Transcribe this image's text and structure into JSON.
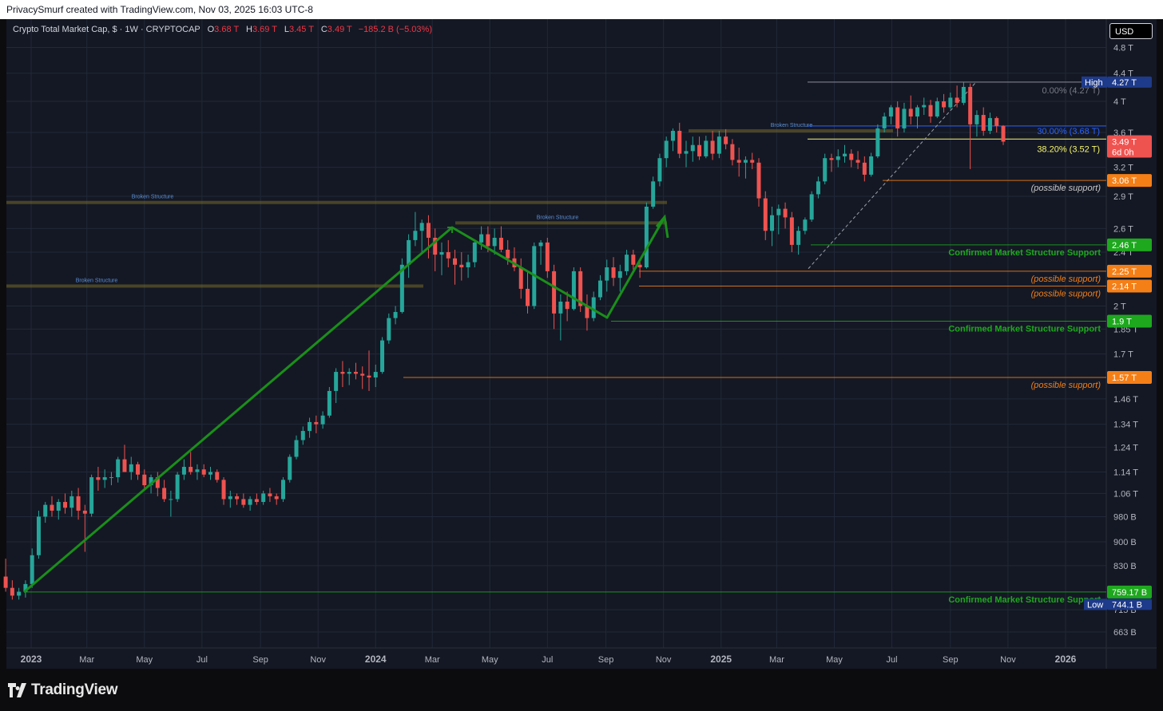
{
  "header": {
    "attribution": "PrivacySmurf created with TradingView.com, Nov 03, 2025 16:03 UTC-8"
  },
  "legend": {
    "symbol": "Crypto Total Market Cap, $ · 1W · CRYPTOCAP",
    "o_label": "O",
    "o_value": "3.68 T",
    "h_label": "H",
    "h_value": "3.69 T",
    "l_label": "L",
    "l_value": "3.45 T",
    "c_label": "C",
    "c_value": "3.49 T",
    "change": "−185.2 B (−5.03%)"
  },
  "currency_button": "USD",
  "brand": {
    "name": "TradingView",
    "icon": "tradingview-logo-icon"
  },
  "colors": {
    "up": "#26a69a",
    "down": "#ef5350",
    "background": "#141824",
    "support_green": "#1ea81e",
    "support_orange": "#f57f17",
    "trend_arrow": "#1a8f1a"
  },
  "chart_data": {
    "type": "candlestick",
    "interval": "1W",
    "y_scale": "log",
    "y_unit": "USD",
    "y_ticks": [
      "4.8 T",
      "4.4 T",
      "4 T",
      "3.6 T",
      "3.2 T",
      "2.9 T",
      "2.6 T",
      "2.4 T",
      "2 T",
      "1.85 T",
      "1.7 T",
      "1.46 T",
      "1.34 T",
      "1.24 T",
      "1.14 T",
      "1.06 T",
      "980 B",
      "900 B",
      "830 B",
      "715 B",
      "663 B"
    ],
    "y_tick_values": [
      4.8,
      4.4,
      4.0,
      3.6,
      3.2,
      2.9,
      2.6,
      2.4,
      2.0,
      1.85,
      1.7,
      1.46,
      1.34,
      1.24,
      1.14,
      1.06,
      0.98,
      0.9,
      0.83,
      0.715,
      0.663
    ],
    "x_ticks": [
      {
        "label": "2023",
        "date": "2023-01-01",
        "bold": true
      },
      {
        "label": "Mar",
        "date": "2023-03-01"
      },
      {
        "label": "May",
        "date": "2023-05-01"
      },
      {
        "label": "Jul",
        "date": "2023-07-01"
      },
      {
        "label": "Sep",
        "date": "2023-09-01"
      },
      {
        "label": "Nov",
        "date": "2023-11-01"
      },
      {
        "label": "2024",
        "date": "2024-01-01",
        "bold": true
      },
      {
        "label": "Mar",
        "date": "2024-03-01"
      },
      {
        "label": "May",
        "date": "2024-05-01"
      },
      {
        "label": "Jul",
        "date": "2024-07-01"
      },
      {
        "label": "Sep",
        "date": "2024-09-01"
      },
      {
        "label": "Nov",
        "date": "2024-11-01"
      },
      {
        "label": "2025",
        "date": "2025-01-01",
        "bold": true
      },
      {
        "label": "Mar",
        "date": "2025-03-01"
      },
      {
        "label": "May",
        "date": "2025-05-01"
      },
      {
        "label": "Jul",
        "date": "2025-07-01"
      },
      {
        "label": "Sep",
        "date": "2025-09-01"
      },
      {
        "label": "Nov",
        "date": "2025-11-01"
      },
      {
        "label": "2026",
        "date": "2026-01-01",
        "bold": true
      }
    ],
    "candles_start_date": "2022-12-05",
    "candles": [
      [
        0.8,
        0.85,
        0.76,
        0.77
      ],
      [
        0.77,
        0.79,
        0.74,
        0.75
      ],
      [
        0.75,
        0.77,
        0.74,
        0.76
      ],
      [
        0.76,
        0.79,
        0.745,
        0.78
      ],
      [
        0.78,
        0.88,
        0.77,
        0.86
      ],
      [
        0.86,
        1.0,
        0.85,
        0.98
      ],
      [
        0.98,
        1.03,
        0.96,
        1.02
      ],
      [
        1.02,
        1.05,
        0.98,
        1.0
      ],
      [
        1.0,
        1.04,
        0.97,
        1.03
      ],
      [
        1.03,
        1.06,
        0.99,
        1.01
      ],
      [
        1.01,
        1.07,
        0.98,
        1.05
      ],
      [
        1.05,
        1.08,
        0.97,
        1.0
      ],
      [
        1.0,
        1.02,
        0.87,
        0.99
      ],
      [
        0.99,
        1.13,
        0.98,
        1.12
      ],
      [
        1.12,
        1.16,
        1.07,
        1.11
      ],
      [
        1.11,
        1.15,
        1.08,
        1.12
      ],
      [
        1.12,
        1.14,
        1.09,
        1.12
      ],
      [
        1.12,
        1.2,
        1.1,
        1.19
      ],
      [
        1.19,
        1.25,
        1.15,
        1.14
      ],
      [
        1.14,
        1.2,
        1.11,
        1.17
      ],
      [
        1.17,
        1.18,
        1.11,
        1.13
      ],
      [
        1.13,
        1.15,
        1.08,
        1.09
      ],
      [
        1.09,
        1.13,
        1.06,
        1.12
      ],
      [
        1.12,
        1.14,
        1.05,
        1.08
      ],
      [
        1.08,
        1.11,
        1.03,
        1.04
      ],
      [
        1.04,
        1.07,
        0.98,
        1.04
      ],
      [
        1.04,
        1.14,
        1.03,
        1.13
      ],
      [
        1.13,
        1.19,
        1.11,
        1.16
      ],
      [
        1.16,
        1.22,
        1.13,
        1.14
      ],
      [
        1.14,
        1.17,
        1.11,
        1.15
      ],
      [
        1.15,
        1.17,
        1.12,
        1.13
      ],
      [
        1.13,
        1.16,
        1.11,
        1.14
      ],
      [
        1.14,
        1.15,
        1.1,
        1.11
      ],
      [
        1.11,
        1.12,
        1.02,
        1.04
      ],
      [
        1.04,
        1.07,
        1.01,
        1.05
      ],
      [
        1.05,
        1.06,
        1.02,
        1.04
      ],
      [
        1.04,
        1.06,
        1.01,
        1.02
      ],
      [
        1.02,
        1.05,
        1.0,
        1.04
      ],
      [
        1.04,
        1.06,
        1.02,
        1.03
      ],
      [
        1.03,
        1.07,
        1.02,
        1.06
      ],
      [
        1.06,
        1.08,
        1.03,
        1.05
      ],
      [
        1.05,
        1.06,
        1.02,
        1.04
      ],
      [
        1.04,
        1.12,
        1.03,
        1.11
      ],
      [
        1.11,
        1.21,
        1.1,
        1.2
      ],
      [
        1.2,
        1.29,
        1.19,
        1.27
      ],
      [
        1.27,
        1.33,
        1.25,
        1.31
      ],
      [
        1.31,
        1.37,
        1.28,
        1.35
      ],
      [
        1.35,
        1.38,
        1.3,
        1.34
      ],
      [
        1.34,
        1.4,
        1.32,
        1.38
      ],
      [
        1.38,
        1.52,
        1.37,
        1.5
      ],
      [
        1.5,
        1.62,
        1.44,
        1.6
      ],
      [
        1.6,
        1.66,
        1.52,
        1.59
      ],
      [
        1.59,
        1.62,
        1.53,
        1.6
      ],
      [
        1.6,
        1.65,
        1.56,
        1.59
      ],
      [
        1.59,
        1.63,
        1.51,
        1.58
      ],
      [
        1.58,
        1.72,
        1.5,
        1.57
      ],
      [
        1.57,
        1.64,
        1.52,
        1.6
      ],
      [
        1.6,
        1.8,
        1.59,
        1.78
      ],
      [
        1.78,
        1.95,
        1.76,
        1.92
      ],
      [
        1.92,
        2.0,
        1.88,
        1.96
      ],
      [
        1.96,
        2.35,
        1.95,
        2.3
      ],
      [
        2.3,
        2.55,
        2.2,
        2.5
      ],
      [
        2.5,
        2.75,
        2.45,
        2.58
      ],
      [
        2.58,
        2.68,
        2.4,
        2.65
      ],
      [
        2.65,
        2.72,
        2.35,
        2.52
      ],
      [
        2.52,
        2.6,
        2.25,
        2.38
      ],
      [
        2.38,
        2.48,
        2.22,
        2.4
      ],
      [
        2.4,
        2.5,
        2.28,
        2.35
      ],
      [
        2.35,
        2.42,
        2.15,
        2.3
      ],
      [
        2.3,
        2.4,
        2.18,
        2.28
      ],
      [
        2.28,
        2.38,
        2.2,
        2.32
      ],
      [
        2.32,
        2.5,
        2.28,
        2.48
      ],
      [
        2.48,
        2.62,
        2.42,
        2.55
      ],
      [
        2.55,
        2.62,
        2.4,
        2.45
      ],
      [
        2.45,
        2.6,
        2.38,
        2.52
      ],
      [
        2.52,
        2.62,
        2.4,
        2.42
      ],
      [
        2.42,
        2.5,
        2.3,
        2.35
      ],
      [
        2.35,
        2.44,
        2.25,
        2.28
      ],
      [
        2.28,
        2.35,
        2.05,
        2.12
      ],
      [
        2.12,
        2.25,
        1.95,
        2.0
      ],
      [
        2.0,
        2.48,
        1.98,
        2.45
      ],
      [
        2.45,
        2.5,
        2.3,
        2.48
      ],
      [
        2.48,
        2.52,
        2.2,
        2.25
      ],
      [
        2.25,
        2.3,
        1.85,
        1.95
      ],
      [
        1.95,
        2.08,
        1.78,
        2.03
      ],
      [
        2.03,
        2.1,
        1.9,
        1.98
      ],
      [
        1.98,
        2.28,
        1.97,
        2.25
      ],
      [
        2.25,
        2.28,
        1.96,
        2.0
      ],
      [
        2.0,
        2.08,
        1.84,
        1.92
      ],
      [
        1.92,
        2.1,
        1.9,
        2.06
      ],
      [
        2.06,
        2.22,
        2.04,
        2.18
      ],
      [
        2.18,
        2.34,
        2.1,
        2.28
      ],
      [
        2.28,
        2.36,
        2.14,
        2.2
      ],
      [
        2.2,
        2.3,
        2.1,
        2.25
      ],
      [
        2.25,
        2.42,
        2.22,
        2.38
      ],
      [
        2.38,
        2.42,
        2.26,
        2.3
      ],
      [
        2.3,
        2.34,
        2.2,
        2.28
      ],
      [
        2.28,
        2.84,
        2.27,
        2.8
      ],
      [
        2.8,
        3.1,
        2.78,
        3.05
      ],
      [
        3.05,
        3.35,
        3.0,
        3.3
      ],
      [
        3.3,
        3.55,
        3.2,
        3.5
      ],
      [
        3.5,
        3.65,
        3.38,
        3.62
      ],
      [
        3.62,
        3.72,
        3.3,
        3.35
      ],
      [
        3.35,
        3.5,
        3.2,
        3.38
      ],
      [
        3.38,
        3.55,
        3.26,
        3.45
      ],
      [
        3.45,
        3.55,
        3.28,
        3.32
      ],
      [
        3.32,
        3.56,
        3.3,
        3.5
      ],
      [
        3.5,
        3.62,
        3.28,
        3.35
      ],
      [
        3.35,
        3.62,
        3.3,
        3.55
      ],
      [
        3.55,
        3.64,
        3.4,
        3.46
      ],
      [
        3.46,
        3.52,
        3.22,
        3.28
      ],
      [
        3.28,
        3.42,
        3.1,
        3.25
      ],
      [
        3.25,
        3.32,
        3.08,
        3.28
      ],
      [
        3.28,
        3.36,
        3.18,
        3.25
      ],
      [
        3.25,
        3.3,
        2.8,
        2.88
      ],
      [
        2.88,
        2.95,
        2.5,
        2.58
      ],
      [
        2.58,
        2.8,
        2.45,
        2.72
      ],
      [
        2.72,
        2.82,
        2.55,
        2.78
      ],
      [
        2.78,
        2.84,
        2.6,
        2.7
      ],
      [
        2.7,
        2.75,
        2.4,
        2.46
      ],
      [
        2.46,
        2.62,
        2.38,
        2.58
      ],
      [
        2.58,
        2.7,
        2.55,
        2.68
      ],
      [
        2.68,
        2.95,
        2.66,
        2.92
      ],
      [
        2.92,
        3.1,
        2.88,
        3.05
      ],
      [
        3.05,
        3.35,
        3.02,
        3.3
      ],
      [
        3.3,
        3.35,
        3.15,
        3.28
      ],
      [
        3.28,
        3.4,
        3.2,
        3.32
      ],
      [
        3.32,
        3.45,
        3.25,
        3.35
      ],
      [
        3.35,
        3.4,
        3.2,
        3.28
      ],
      [
        3.28,
        3.38,
        3.18,
        3.25
      ],
      [
        3.25,
        3.32,
        3.05,
        3.12
      ],
      [
        3.12,
        3.36,
        3.1,
        3.32
      ],
      [
        3.32,
        3.7,
        3.3,
        3.65
      ],
      [
        3.65,
        3.85,
        3.6,
        3.8
      ],
      [
        3.8,
        3.95,
        3.7,
        3.92
      ],
      [
        3.92,
        4.0,
        3.55,
        3.65
      ],
      [
        3.65,
        3.98,
        3.6,
        3.9
      ],
      [
        3.9,
        4.08,
        3.7,
        3.8
      ],
      [
        3.8,
        3.95,
        3.65,
        3.92
      ],
      [
        3.92,
        4.05,
        3.82,
        3.95
      ],
      [
        3.95,
        4.02,
        3.72,
        3.8
      ],
      [
        3.8,
        4.05,
        3.78,
        4.0
      ],
      [
        4.0,
        4.1,
        3.85,
        3.92
      ],
      [
        3.92,
        4.12,
        3.9,
        4.05
      ],
      [
        4.05,
        4.22,
        3.92,
        3.98
      ],
      [
        3.98,
        4.27,
        3.95,
        4.2
      ],
      [
        4.2,
        4.25,
        3.18,
        3.7
      ],
      [
        3.7,
        3.88,
        3.55,
        3.82
      ],
      [
        3.82,
        3.92,
        3.56,
        3.62
      ],
      [
        3.62,
        3.85,
        3.58,
        3.78
      ],
      [
        3.78,
        3.8,
        3.6,
        3.68
      ],
      [
        3.68,
        3.69,
        3.45,
        3.49
      ]
    ],
    "series": [
      {
        "name": "Crypto Total Market Cap"
      }
    ],
    "horizontal_levels": [
      {
        "price": 3.06,
        "label": "3.06 T",
        "note": "(possible support)",
        "color": "#f57f17"
      },
      {
        "price": 2.46,
        "label": "2.46 T",
        "note": "Confirmed Market Structure Support",
        "color": "#1ea81e"
      },
      {
        "price": 2.25,
        "label": "2.25 T",
        "note": "(possible support)",
        "color": "#f57f17"
      },
      {
        "price": 2.14,
        "label": "2.14 T",
        "note": "(possible support)",
        "color": "#f57f17"
      },
      {
        "price": 1.9,
        "label": "1.9 T",
        "note": "Confirmed Market Structure Support",
        "color": "#1ea81e"
      },
      {
        "price": 1.57,
        "label": "1.57 T",
        "note": "(possible support)",
        "color": "#f57f17"
      },
      {
        "price": 0.75917,
        "label": "759.17 B",
        "note": "Confirmed Market Structure Support",
        "color": "#1ea81e"
      }
    ],
    "broken_structure": [
      {
        "label": "Broken Structure",
        "price": 2.84
      },
      {
        "label": "Broken Structure",
        "price": 2.65
      },
      {
        "label": "Broken Structure",
        "price": 2.14
      },
      {
        "label": "Broken Structure",
        "price": 3.62
      }
    ],
    "fib": [
      {
        "label": "0.00% (4.27 T)",
        "price": 4.27,
        "color": "#787b86"
      },
      {
        "label": "30.00% (3.68 T)",
        "price": 3.68,
        "color": "#2962ff"
      },
      {
        "label": "38.20% (3.52 T)",
        "price": 3.52,
        "color": "#f7f76a"
      }
    ],
    "markers": {
      "high": {
        "tag": "High",
        "label": "4.27 T"
      },
      "low": {
        "tag": "Low",
        "label": "744.1 B"
      },
      "current": {
        "label": "3.49 T",
        "countdown": "6d 0h"
      }
    }
  }
}
